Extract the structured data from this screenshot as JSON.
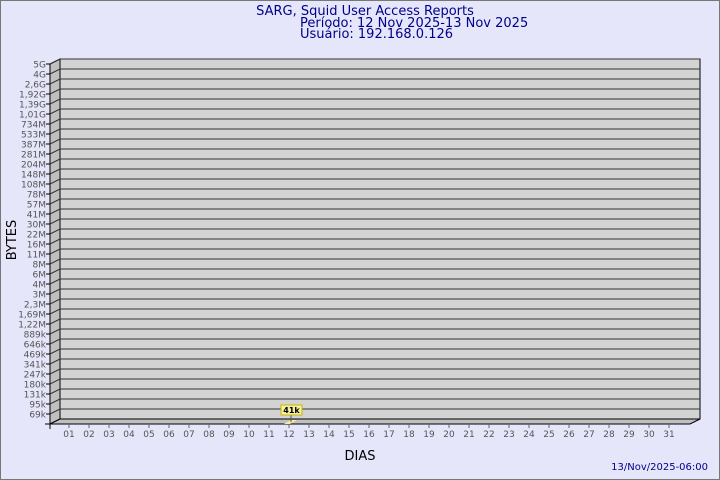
{
  "chart_data": {
    "type": "bar",
    "title": "SARG, Squid User Access Reports",
    "subtitle_period": "Período: 12 Nov 2025-13 Nov 2025",
    "subtitle_user": "Usuário: 192.168.0.126",
    "xlabel": "DIAS",
    "ylabel": "BYTES",
    "footer": "13/Nov/2025-06:00",
    "y_scale": "log",
    "y_tick_labels": [
      "5G",
      "4G",
      "2,6G",
      "1,92G",
      "1,39G",
      "1,01G",
      "734M",
      "533M",
      "387M",
      "281M",
      "204M",
      "148M",
      "108M",
      "78M",
      "57M",
      "41M",
      "30M",
      "22M",
      "16M",
      "11M",
      "8M",
      "6M",
      "4M",
      "3M",
      "2,3M",
      "1,69M",
      "1,22M",
      "889k",
      "646k",
      "469k",
      "341k",
      "247k",
      "180k",
      "131k",
      "95k",
      "69k"
    ],
    "categories": [
      "01",
      "02",
      "03",
      "04",
      "05",
      "06",
      "07",
      "08",
      "09",
      "10",
      "11",
      "12",
      "13",
      "14",
      "15",
      "16",
      "17",
      "18",
      "19",
      "20",
      "21",
      "22",
      "23",
      "24",
      "25",
      "26",
      "27",
      "28",
      "29",
      "30",
      "31"
    ],
    "bars": [
      {
        "day": "12",
        "value_label": "41k"
      }
    ],
    "grid": true,
    "colors": {
      "wall": "#d3d3d3",
      "side": "#c0c0c0",
      "bar": "#ffe9a0",
      "label_bg": "#f5f0a0",
      "title": "#00008b",
      "tick_text": "#555555"
    }
  }
}
